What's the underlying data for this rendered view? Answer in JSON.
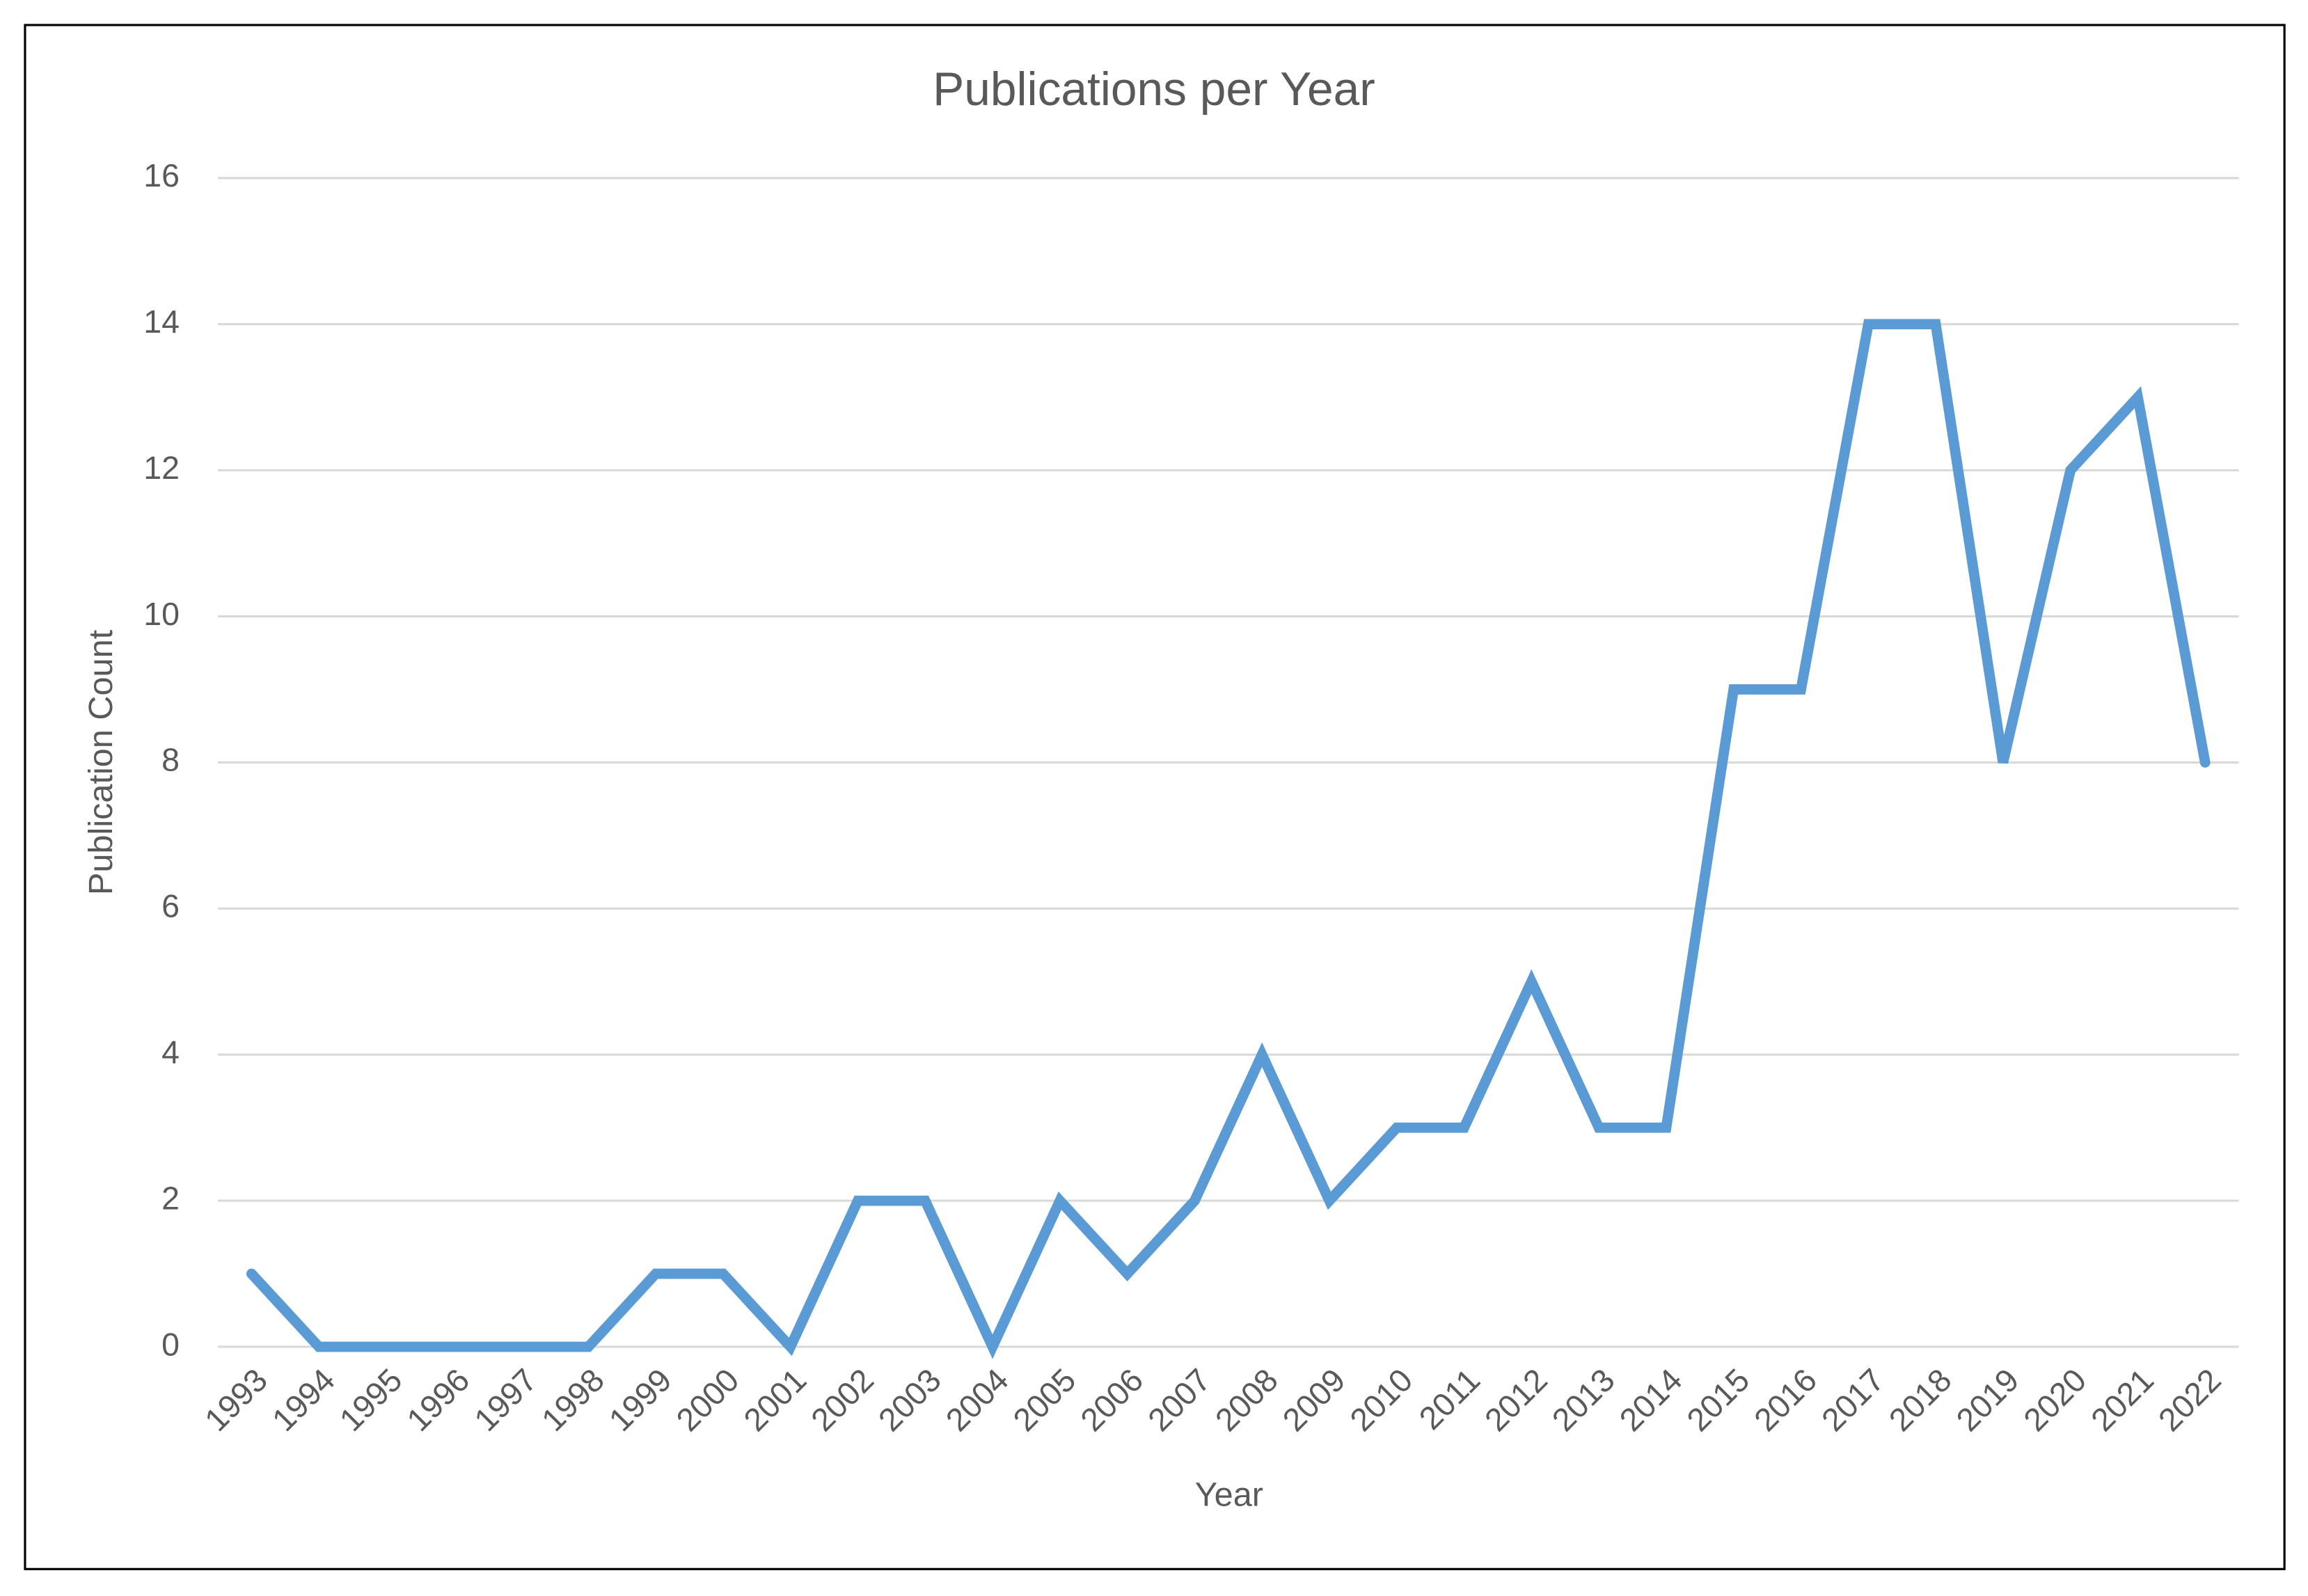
{
  "chart_data": {
    "type": "line",
    "title": "Publications per Year",
    "x_label": "Year",
    "y_label": "Publication Count",
    "categories": [
      "1993",
      "1994",
      "1995",
      "1996",
      "1997",
      "1998",
      "1999",
      "2000",
      "2001",
      "2002",
      "2003",
      "2004",
      "2005",
      "2006",
      "2007",
      "2008",
      "2009",
      "2010",
      "2011",
      "2012",
      "2013",
      "2014",
      "2015",
      "2016",
      "2017",
      "2018",
      "2019",
      "2020",
      "2021",
      "2022"
    ],
    "values": [
      1,
      0,
      0,
      0,
      0,
      0,
      1,
      1,
      0,
      2,
      2,
      0,
      2,
      1,
      2,
      4,
      2,
      3,
      3,
      5,
      3,
      3,
      9,
      9,
      14,
      14,
      8,
      12,
      13,
      8
    ],
    "color": "#5b9bd5",
    "ylim": [
      0,
      16
    ],
    "yticks": [
      0,
      2,
      4,
      6,
      8,
      10,
      12,
      14,
      16
    ],
    "grid": true
  }
}
